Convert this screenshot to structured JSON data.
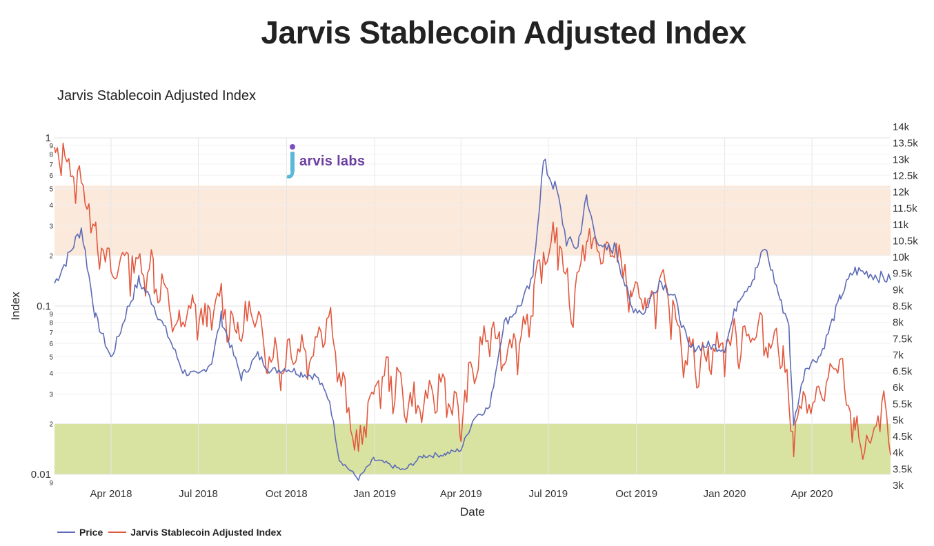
{
  "page": {
    "title": "Jarvis Stablecoin Adjusted Index",
    "logo_text": "arvis labs"
  },
  "colors": {
    "price": "#5c6bb5",
    "index": "#e2583e",
    "upper_band": "#fbe9dc",
    "lower_band": "#d8e3a2"
  },
  "chart_data": {
    "type": "line",
    "title": "Jarvis Stablecoin Adjusted Index",
    "xlabel": "Date",
    "ylabel": "Index",
    "x_range": [
      "2018-02-01",
      "2020-06-22"
    ],
    "x_ticks": [
      {
        "date": "2018-04-01",
        "label": "Apr 2018"
      },
      {
        "date": "2018-07-01",
        "label": "Jul 2018"
      },
      {
        "date": "2018-10-01",
        "label": "Oct 2018"
      },
      {
        "date": "2019-01-01",
        "label": "Jan 2019"
      },
      {
        "date": "2019-04-01",
        "label": "Apr 2019"
      },
      {
        "date": "2019-07-01",
        "label": "Jul 2019"
      },
      {
        "date": "2019-10-01",
        "label": "Oct 2019"
      },
      {
        "date": "2020-01-01",
        "label": "Jan 2020"
      },
      {
        "date": "2020-04-01",
        "label": "Apr 2020"
      }
    ],
    "y_left": {
      "scale": "log",
      "range": [
        0.01,
        1.0
      ],
      "major_ticks": [
        {
          "value": 1,
          "label": "1"
        },
        {
          "value": 0.1,
          "label": "0.1"
        },
        {
          "value": 0.01,
          "label": "0.01"
        }
      ],
      "minor_ticks": [
        {
          "value": 0.9,
          "label": "9"
        },
        {
          "value": 0.8,
          "label": "8"
        },
        {
          "value": 0.7,
          "label": "7"
        },
        {
          "value": 0.6,
          "label": "6"
        },
        {
          "value": 0.5,
          "label": "5"
        },
        {
          "value": 0.4,
          "label": "4"
        },
        {
          "value": 0.3,
          "label": "3"
        },
        {
          "value": 0.2,
          "label": "2"
        },
        {
          "value": 0.09,
          "label": "9"
        },
        {
          "value": 0.08,
          "label": "8"
        },
        {
          "value": 0.07,
          "label": "7"
        },
        {
          "value": 0.06,
          "label": "6"
        },
        {
          "value": 0.05,
          "label": "5"
        },
        {
          "value": 0.04,
          "label": "4"
        },
        {
          "value": 0.03,
          "label": "3"
        },
        {
          "value": 0.02,
          "label": "2"
        },
        {
          "value": 0.009,
          "label": "9"
        }
      ]
    },
    "y_right": {
      "scale": "linear",
      "range": [
        3000,
        14000
      ],
      "ticks": [
        {
          "value": 3000,
          "label": "3k"
        },
        {
          "value": 3500,
          "label": "3.5k"
        },
        {
          "value": 4000,
          "label": "4k"
        },
        {
          "value": 4500,
          "label": "4.5k"
        },
        {
          "value": 5000,
          "label": "5k"
        },
        {
          "value": 5500,
          "label": "5.5k"
        },
        {
          "value": 6000,
          "label": "6k"
        },
        {
          "value": 6500,
          "label": "6.5k"
        },
        {
          "value": 7000,
          "label": "7k"
        },
        {
          "value": 7500,
          "label": "7.5k"
        },
        {
          "value": 8000,
          "label": "8k"
        },
        {
          "value": 8500,
          "label": "8.5k"
        },
        {
          "value": 9000,
          "label": "9k"
        },
        {
          "value": 9500,
          "label": "9.5k"
        },
        {
          "value": 10000,
          "label": "10k"
        },
        {
          "value": 10500,
          "label": "10.5k"
        },
        {
          "value": 11000,
          "label": "11k"
        },
        {
          "value": 11500,
          "label": "11.5k"
        },
        {
          "value": 12000,
          "label": "12k"
        },
        {
          "value": 12500,
          "label": "12.5k"
        },
        {
          "value": 13000,
          "label": "13k"
        },
        {
          "value": 13500,
          "label": "13.5k"
        },
        {
          "value": 14000,
          "label": "14k"
        }
      ]
    },
    "bands": [
      {
        "name": "upper",
        "from": 0.2,
        "to": 0.52
      },
      {
        "name": "lower",
        "from": 0.01,
        "to": 0.02
      }
    ],
    "series": [
      {
        "name": "Price",
        "axis": "right",
        "points": [
          [
            "2018-02-01",
            9200
          ],
          [
            "2018-02-15",
            10000
          ],
          [
            "2018-03-01",
            10900
          ],
          [
            "2018-03-15",
            8300
          ],
          [
            "2018-04-01",
            6900
          ],
          [
            "2018-04-15",
            8100
          ],
          [
            "2018-04-30",
            9300
          ],
          [
            "2018-05-15",
            8600
          ],
          [
            "2018-06-01",
            7500
          ],
          [
            "2018-06-15",
            6500
          ],
          [
            "2018-07-01",
            6350
          ],
          [
            "2018-07-15",
            6800
          ],
          [
            "2018-07-25",
            8200
          ],
          [
            "2018-08-15",
            6300
          ],
          [
            "2018-09-01",
            7000
          ],
          [
            "2018-09-15",
            6500
          ],
          [
            "2018-10-01",
            6600
          ],
          [
            "2018-10-15",
            6450
          ],
          [
            "2018-11-01",
            6350
          ],
          [
            "2018-11-15",
            5600
          ],
          [
            "2018-11-25",
            3800
          ],
          [
            "2018-12-15",
            3200
          ],
          [
            "2018-12-31",
            3800
          ],
          [
            "2019-01-15",
            3650
          ],
          [
            "2019-02-01",
            3450
          ],
          [
            "2019-02-20",
            3900
          ],
          [
            "2019-03-15",
            3950
          ],
          [
            "2019-04-01",
            4100
          ],
          [
            "2019-04-15",
            5100
          ],
          [
            "2019-05-01",
            5400
          ],
          [
            "2019-05-15",
            7900
          ],
          [
            "2019-06-01",
            8500
          ],
          [
            "2019-06-15",
            9300
          ],
          [
            "2019-06-26",
            12900
          ],
          [
            "2019-07-10",
            12000
          ],
          [
            "2019-07-20",
            10500
          ],
          [
            "2019-08-01",
            10300
          ],
          [
            "2019-08-10",
            11800
          ],
          [
            "2019-08-25",
            10200
          ],
          [
            "2019-09-10",
            10300
          ],
          [
            "2019-09-25",
            8500
          ],
          [
            "2019-10-10",
            8300
          ],
          [
            "2019-10-25",
            9300
          ],
          [
            "2019-11-10",
            8800
          ],
          [
            "2019-11-25",
            7200
          ],
          [
            "2019-12-15",
            7300
          ],
          [
            "2020-01-01",
            7200
          ],
          [
            "2020-01-15",
            8700
          ],
          [
            "2020-02-01",
            9400
          ],
          [
            "2020-02-12",
            10300
          ],
          [
            "2020-02-28",
            8700
          ],
          [
            "2020-03-08",
            8000
          ],
          [
            "2020-03-13",
            4900
          ],
          [
            "2020-03-25",
            6600
          ],
          [
            "2020-04-10",
            7000
          ],
          [
            "2020-04-30",
            8700
          ],
          [
            "2020-05-15",
            9600
          ],
          [
            "2020-06-01",
            9500
          ],
          [
            "2020-06-22",
            9300
          ]
        ]
      },
      {
        "name": "Jarvis Stablecoin Adjusted Index",
        "axis": "left",
        "points": [
          [
            "2018-02-01",
            0.7
          ],
          [
            "2018-02-08",
            0.9
          ],
          [
            "2018-02-20",
            0.6
          ],
          [
            "2018-03-01",
            0.55
          ],
          [
            "2018-03-15",
            0.3
          ],
          [
            "2018-04-01",
            0.15
          ],
          [
            "2018-04-15",
            0.2
          ],
          [
            "2018-05-01",
            0.17
          ],
          [
            "2018-05-15",
            0.17
          ],
          [
            "2018-06-01",
            0.1
          ],
          [
            "2018-06-10",
            0.07
          ],
          [
            "2018-06-25",
            0.1
          ],
          [
            "2018-07-10",
            0.08
          ],
          [
            "2018-07-25",
            0.11
          ],
          [
            "2018-08-10",
            0.07
          ],
          [
            "2018-08-25",
            0.09
          ],
          [
            "2018-09-10",
            0.06
          ],
          [
            "2018-09-25",
            0.045
          ],
          [
            "2018-10-10",
            0.06
          ],
          [
            "2018-10-25",
            0.05
          ],
          [
            "2018-11-10",
            0.09
          ],
          [
            "2018-11-20",
            0.07
          ],
          [
            "2018-11-25",
            0.04
          ],
          [
            "2018-12-05",
            0.022
          ],
          [
            "2018-12-15",
            0.014
          ],
          [
            "2018-12-31",
            0.032
          ],
          [
            "2019-01-15",
            0.04
          ],
          [
            "2019-02-01",
            0.03
          ],
          [
            "2019-02-15",
            0.025
          ],
          [
            "2019-03-01",
            0.028
          ],
          [
            "2019-03-15",
            0.035
          ],
          [
            "2019-03-31",
            0.02
          ],
          [
            "2019-04-15",
            0.045
          ],
          [
            "2019-05-01",
            0.07
          ],
          [
            "2019-05-15",
            0.055
          ],
          [
            "2019-06-01",
            0.065
          ],
          [
            "2019-06-15",
            0.1
          ],
          [
            "2019-06-26",
            0.19
          ],
          [
            "2019-07-10",
            0.28
          ],
          [
            "2019-07-25",
            0.1
          ],
          [
            "2019-08-10",
            0.26
          ],
          [
            "2019-08-25",
            0.2
          ],
          [
            "2019-09-10",
            0.22
          ],
          [
            "2019-09-25",
            0.12
          ],
          [
            "2019-10-10",
            0.1
          ],
          [
            "2019-10-25",
            0.13
          ],
          [
            "2019-11-10",
            0.09
          ],
          [
            "2019-11-25",
            0.05
          ],
          [
            "2019-12-15",
            0.05
          ],
          [
            "2020-01-01",
            0.06
          ],
          [
            "2020-01-15",
            0.065
          ],
          [
            "2020-02-01",
            0.07
          ],
          [
            "2020-02-15",
            0.065
          ],
          [
            "2020-03-01",
            0.06
          ],
          [
            "2020-03-12",
            0.018
          ],
          [
            "2020-03-25",
            0.025
          ],
          [
            "2020-04-10",
            0.03
          ],
          [
            "2020-04-30",
            0.045
          ],
          [
            "2020-05-15",
            0.019
          ],
          [
            "2020-06-01",
            0.014
          ],
          [
            "2020-06-15",
            0.03
          ],
          [
            "2020-06-22",
            0.013
          ]
        ]
      }
    ],
    "legend": [
      "Price",
      "Jarvis Stablecoin Adjusted Index"
    ],
    "legend_position": "bottom-left"
  }
}
